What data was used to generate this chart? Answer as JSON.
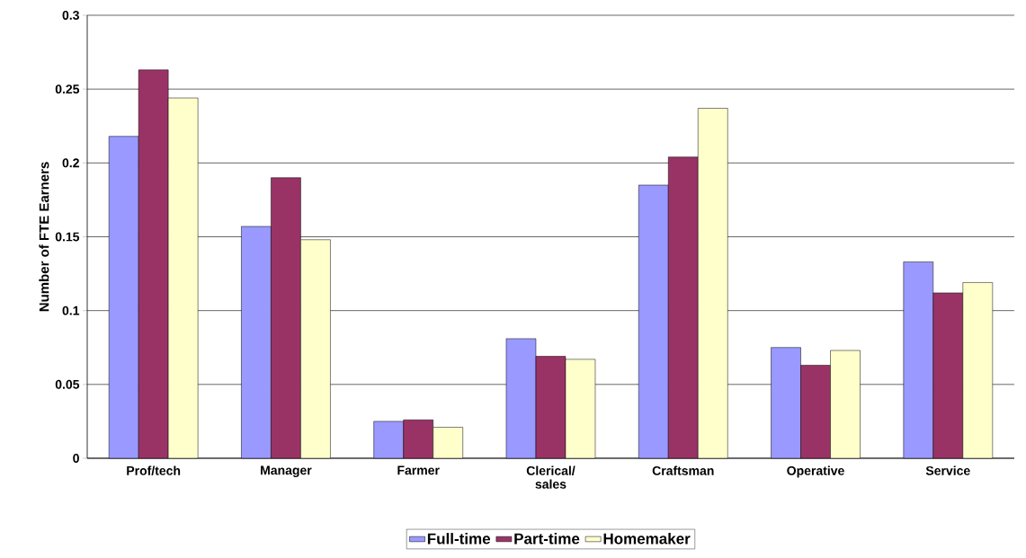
{
  "chart_data": {
    "type": "bar",
    "ylabel": "Number of FTE Earners",
    "categories": [
      "Prof/tech",
      "Manager",
      "Farmer",
      "Clerical/ sales",
      "Craftsman",
      "Operative",
      "Service"
    ],
    "series": [
      {
        "name": "Full-time",
        "color": "#9999ff",
        "values": [
          0.218,
          0.157,
          0.025,
          0.081,
          0.185,
          0.075,
          0.133
        ]
      },
      {
        "name": "Part-time",
        "color": "#993366",
        "values": [
          0.263,
          0.19,
          0.026,
          0.069,
          0.204,
          0.063,
          0.112
        ]
      },
      {
        "name": "Homemaker",
        "color": "#ffffcc",
        "values": [
          0.244,
          0.148,
          0.021,
          0.067,
          0.237,
          0.073,
          0.119
        ]
      }
    ],
    "ylim": [
      0,
      0.3
    ],
    "yticks": [
      0,
      0.05,
      0.1,
      0.15,
      0.2,
      0.25,
      0.3
    ],
    "grid": "y",
    "legend": "bottom"
  }
}
